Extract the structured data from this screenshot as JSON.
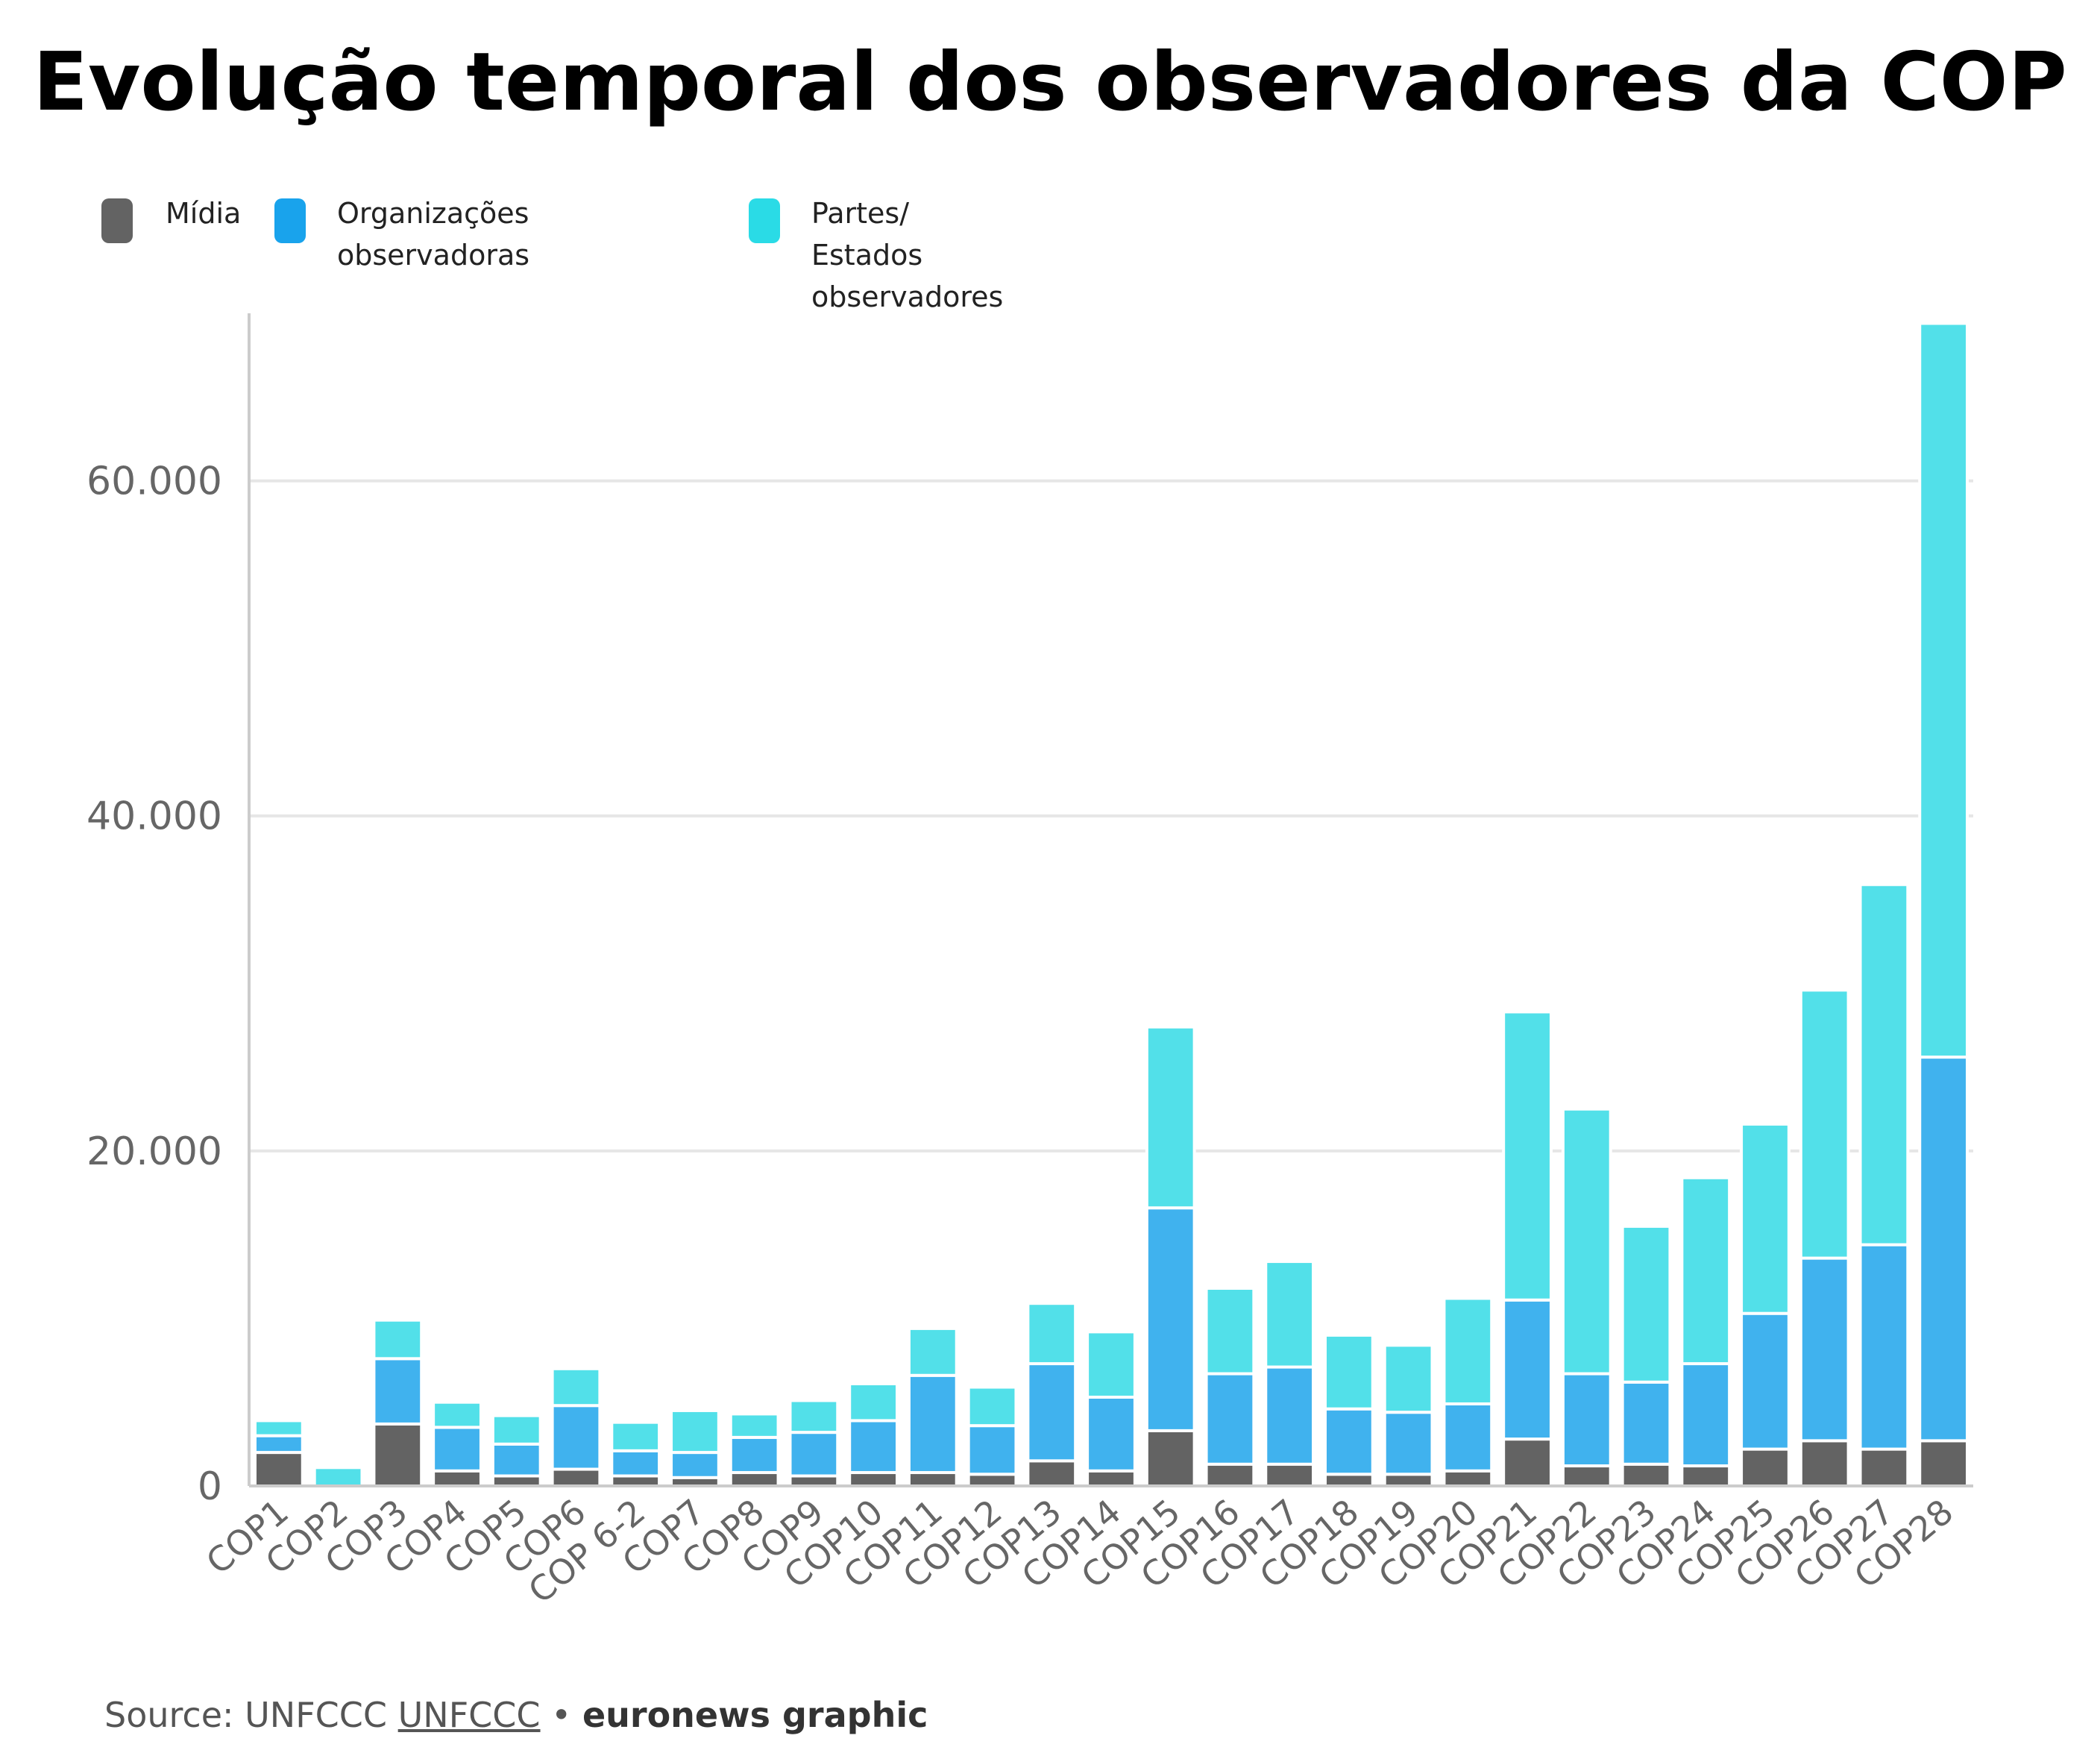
{
  "title": "Evolução temporal dos observadores da COP",
  "legend": [
    {
      "label": "Mídia",
      "color": "#636363"
    },
    {
      "label": "Organizações\nobservadoras",
      "color": "#19a3ec"
    },
    {
      "label": "Partes/\nEstados observadores",
      "color": "#2adbe6"
    }
  ],
  "source": {
    "prefix": "Source: UNFCCC ",
    "link": "UNFCCC",
    "separator": " • ",
    "brand": "euronews graphic"
  },
  "colors": {
    "midia": "#636363",
    "organizacoes": "#40b2ee",
    "partes": "#52e0e9",
    "grid": "#e6e6e6",
    "axis": "#cccccc"
  },
  "chart_data": {
    "type": "bar",
    "stacked": true,
    "title": "Evolução temporal dos observadores da COP",
    "xlabel": "",
    "ylabel": "",
    "ylim": [
      0,
      70000
    ],
    "yticks": [
      0,
      20000,
      40000,
      60000
    ],
    "ytick_labels": [
      "0",
      "20.000",
      "40.000",
      "60.000"
    ],
    "grid": true,
    "legend_position": "top-left",
    "categories": [
      "COP1",
      "COP2",
      "COP3",
      "COP4",
      "COP5",
      "COP6",
      "COP 6-2",
      "COP7",
      "COP8",
      "COP9",
      "COP10",
      "COP11",
      "COP12",
      "COP13",
      "COP14",
      "COP15",
      "COP16",
      "COP17",
      "COP18",
      "COP19",
      "COP20",
      "COP21",
      "COP22",
      "COP23",
      "COP24",
      "COP25",
      "COP26",
      "COP27",
      "COP28"
    ],
    "series": [
      {
        "name": "Mídia",
        "values": [
          2000,
          0,
          3700,
          900,
          600,
          1000,
          600,
          500,
          800,
          600,
          800,
          800,
          700,
          1500,
          900,
          3300,
          1300,
          1300,
          700,
          700,
          900,
          2800,
          1200,
          1300,
          1200,
          2200,
          2700,
          2200,
          2700
        ]
      },
      {
        "name": "Organizações observadoras",
        "values": [
          1000,
          0,
          3900,
          2600,
          1900,
          3800,
          1500,
          1500,
          2100,
          2600,
          3100,
          5800,
          2900,
          5800,
          4400,
          13300,
          5400,
          5800,
          3900,
          3700,
          4000,
          8300,
          5500,
          4900,
          6100,
          8100,
          10900,
          12200,
          22900
        ]
      },
      {
        "name": "Partes/ Estados observadores",
        "values": [
          900,
          1100,
          2300,
          1500,
          1700,
          2200,
          1700,
          2500,
          1400,
          1900,
          2200,
          2800,
          2300,
          3600,
          3900,
          10800,
          5100,
          6300,
          4400,
          4000,
          6300,
          17200,
          15800,
          9300,
          11100,
          11300,
          16000,
          21500,
          43800
        ]
      }
    ]
  }
}
